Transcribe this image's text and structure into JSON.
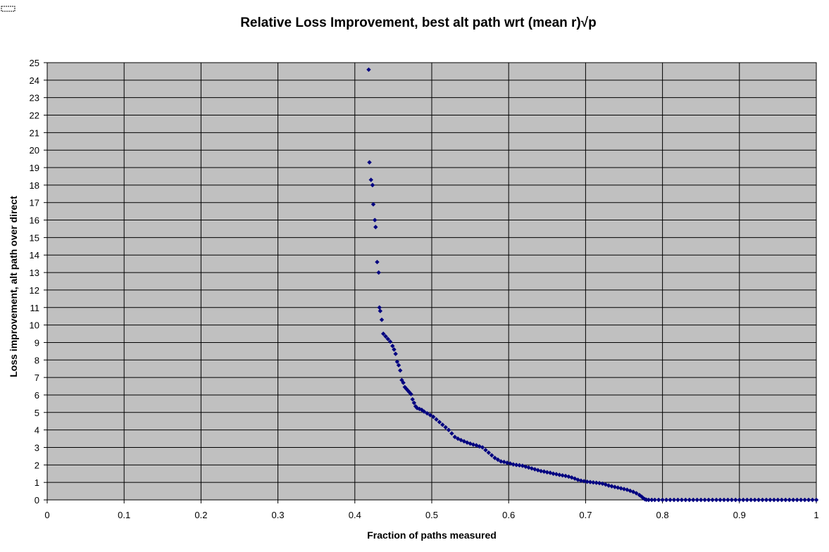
{
  "colors": {
    "plot_background": "#c0c0c0",
    "gridline": "#000000",
    "marker": "#000080",
    "page_background": "#ffffff"
  },
  "chart_data": {
    "type": "scatter",
    "title": "Relative Loss Improvement, best alt path wrt (mean r)√p",
    "xlabel": "Fraction of paths measured",
    "ylabel": "Loss improvement, alt path over direct",
    "xlim": [
      0,
      1
    ],
    "ylim": [
      0,
      25
    ],
    "xticks": [
      "0",
      "0.1",
      "0.2",
      "0.3",
      "0.4",
      "0.5",
      "0.6",
      "0.7",
      "0.8",
      "0.9",
      "1"
    ],
    "yticks": [
      "0",
      "1",
      "2",
      "3",
      "4",
      "5",
      "6",
      "7",
      "8",
      "9",
      "10",
      "11",
      "12",
      "13",
      "14",
      "15",
      "16",
      "17",
      "18",
      "19",
      "20",
      "21",
      "22",
      "23",
      "24",
      "25"
    ],
    "grid": true,
    "legend": "none",
    "marker": "diamond",
    "series": [
      {
        "x": [
          0.418,
          0.419,
          0.421,
          0.423,
          0.424,
          0.426,
          0.427,
          0.429,
          0.431,
          0.432,
          0.433,
          0.435,
          0.437,
          0.44,
          0.443,
          0.446,
          0.449,
          0.451,
          0.453,
          0.455,
          0.457,
          0.459,
          0.461,
          0.463,
          0.465,
          0.467,
          0.469,
          0.471,
          0.473,
          0.475,
          0.477,
          0.479,
          0.481,
          0.484,
          0.487,
          0.49,
          0.494,
          0.498,
          0.502,
          0.506,
          0.51,
          0.514,
          0.518,
          0.522,
          0.526,
          0.53,
          0.534,
          0.538,
          0.542,
          0.546,
          0.55,
          0.554,
          0.558,
          0.562,
          0.566,
          0.57,
          0.574,
          0.578,
          0.582,
          0.586,
          0.59,
          0.594,
          0.598,
          0.602,
          0.606,
          0.61,
          0.614,
          0.618,
          0.622,
          0.626,
          0.63,
          0.634,
          0.638,
          0.642,
          0.646,
          0.65,
          0.654,
          0.658,
          0.662,
          0.666,
          0.67,
          0.674,
          0.678,
          0.682,
          0.686,
          0.69,
          0.694,
          0.698,
          0.702,
          0.706,
          0.71,
          0.714,
          0.718,
          0.722,
          0.726,
          0.73,
          0.734,
          0.738,
          0.742,
          0.746,
          0.75,
          0.754,
          0.758,
          0.762,
          0.766,
          0.77,
          0.773,
          0.775,
          0.777,
          0.779,
          0.782,
          0.786,
          0.79,
          0.795,
          0.8,
          0.805,
          0.81,
          0.815,
          0.82,
          0.825,
          0.83,
          0.835,
          0.84,
          0.845,
          0.85,
          0.855,
          0.86,
          0.865,
          0.87,
          0.875,
          0.88,
          0.885,
          0.89,
          0.895,
          0.9,
          0.905,
          0.91,
          0.915,
          0.92,
          0.925,
          0.93,
          0.935,
          0.94,
          0.945,
          0.95,
          0.955,
          0.96,
          0.965,
          0.97,
          0.975,
          0.98,
          0.985,
          0.99,
          0.995,
          1.0
        ],
        "y": [
          24.6,
          19.3,
          18.3,
          18.0,
          16.9,
          16.0,
          15.6,
          13.6,
          13.0,
          11.0,
          10.8,
          10.3,
          9.5,
          9.35,
          9.2,
          9.05,
          8.8,
          8.6,
          8.35,
          7.9,
          7.7,
          7.4,
          6.85,
          6.7,
          6.45,
          6.35,
          6.25,
          6.15,
          6.05,
          5.75,
          5.55,
          5.35,
          5.25,
          5.2,
          5.15,
          5.05,
          4.95,
          4.85,
          4.75,
          4.6,
          4.45,
          4.3,
          4.15,
          4.0,
          3.8,
          3.6,
          3.5,
          3.42,
          3.35,
          3.28,
          3.22,
          3.16,
          3.12,
          3.06,
          3.0,
          2.85,
          2.7,
          2.55,
          2.4,
          2.3,
          2.2,
          2.17,
          2.12,
          2.08,
          2.03,
          2.0,
          1.98,
          1.95,
          1.9,
          1.85,
          1.8,
          1.75,
          1.7,
          1.65,
          1.62,
          1.58,
          1.55,
          1.5,
          1.47,
          1.43,
          1.4,
          1.37,
          1.33,
          1.28,
          1.22,
          1.15,
          1.1,
          1.07,
          1.04,
          1.02,
          1.0,
          0.98,
          0.96,
          0.93,
          0.88,
          0.82,
          0.78,
          0.74,
          0.7,
          0.66,
          0.62,
          0.58,
          0.52,
          0.46,
          0.38,
          0.28,
          0.18,
          0.1,
          0.04,
          0.01,
          0.0,
          0.0,
          0.0,
          0.0,
          0.0,
          0.0,
          0.0,
          0.0,
          0.0,
          0.0,
          0.0,
          0.0,
          0.0,
          0.0,
          0.0,
          0.0,
          0.0,
          0.0,
          0.0,
          0.0,
          0.0,
          0.0,
          0.0,
          0.0,
          0.0,
          0.0,
          0.0,
          0.0,
          0.0,
          0.0,
          0.0,
          0.0,
          0.0,
          0.0,
          0.0,
          0.0,
          0.0,
          0.0,
          0.0,
          0.0,
          0.0,
          0.0,
          0.0,
          0.0,
          0.0
        ]
      }
    ]
  }
}
